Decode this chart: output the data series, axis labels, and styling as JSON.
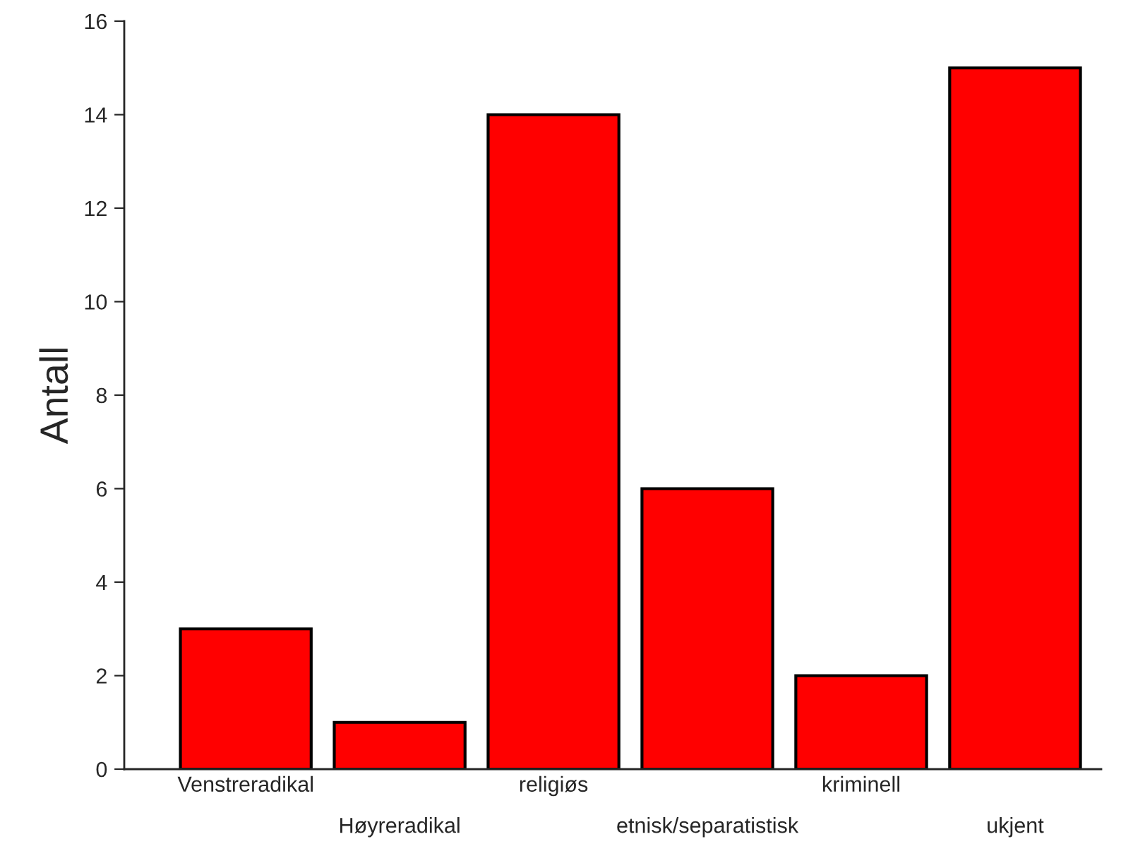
{
  "chart_data": {
    "type": "bar",
    "ylabel": "Antall",
    "categories": [
      "Venstreradikal",
      "Høyreradikal",
      "religiøs",
      "etnisk/separatistisk",
      "kriminell",
      "ukjent"
    ],
    "values": [
      3,
      1,
      14,
      6,
      2,
      15
    ],
    "color": "#ff0000",
    "ylim": [
      0,
      16
    ],
    "yticks": [
      0,
      2,
      4,
      6,
      8,
      10,
      12,
      14,
      16
    ],
    "grid": false,
    "legend": false
  }
}
